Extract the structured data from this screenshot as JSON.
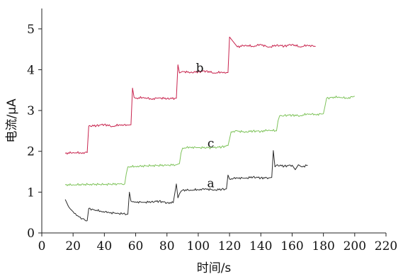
{
  "chart_data": {
    "type": "line",
    "title": "",
    "xlabel": "时间/s",
    "ylabel": "电流/μA",
    "xlim": [
      0,
      220
    ],
    "ylim": [
      0,
      5.5
    ],
    "xticks": [
      0,
      20,
      40,
      60,
      80,
      100,
      120,
      140,
      160,
      180,
      200,
      220
    ],
    "yticks": [
      0,
      1,
      2,
      3,
      4,
      5
    ],
    "grid": false,
    "series": [
      {
        "name": "a",
        "color": "#2b2b2b",
        "label_at": [
          108,
          1.22
        ],
        "x": [
          15,
          17,
          20,
          23,
          26,
          29,
          30,
          33,
          38,
          43,
          48,
          52,
          55,
          56,
          57,
          60,
          65,
          70,
          75,
          80,
          84,
          86,
          87,
          88,
          89,
          90,
          95,
          100,
          105,
          110,
          115,
          118,
          119,
          120,
          125,
          130,
          135,
          140,
          145,
          147,
          148,
          149,
          150,
          155,
          160,
          162,
          164,
          166,
          170
        ],
        "y": [
          0.82,
          0.65,
          0.52,
          0.42,
          0.35,
          0.3,
          0.6,
          0.57,
          0.53,
          0.5,
          0.48,
          0.47,
          0.46,
          1.0,
          0.78,
          0.76,
          0.75,
          0.76,
          0.78,
          0.74,
          0.74,
          1.2,
          0.86,
          0.96,
          1.02,
          1.05,
          1.05,
          1.06,
          1.08,
          1.05,
          1.07,
          1.08,
          1.42,
          1.32,
          1.35,
          1.34,
          1.37,
          1.35,
          1.35,
          1.36,
          2.02,
          1.62,
          1.66,
          1.64,
          1.66,
          1.55,
          1.67,
          1.62,
          1.66
        ]
      },
      {
        "name": "b",
        "color": "#c8244e",
        "label_at": [
          101,
          4.05
        ],
        "x": [
          15,
          20,
          25,
          29,
          30,
          35,
          40,
          45,
          50,
          55,
          57,
          58,
          59,
          60,
          65,
          70,
          75,
          80,
          85,
          86,
          87,
          88,
          90,
          95,
          100,
          105,
          110,
          115,
          118,
          119,
          120,
          125,
          130,
          135,
          140,
          145,
          150,
          155,
          160,
          165,
          170,
          175
        ],
        "y": [
          1.95,
          1.97,
          1.96,
          1.97,
          2.62,
          2.63,
          2.66,
          2.61,
          2.65,
          2.64,
          2.65,
          3.55,
          3.32,
          3.3,
          3.32,
          3.28,
          3.31,
          3.29,
          3.3,
          3.3,
          4.12,
          3.92,
          3.96,
          3.93,
          3.95,
          3.97,
          3.92,
          3.94,
          3.93,
          3.93,
          4.8,
          4.56,
          4.6,
          4.57,
          4.62,
          4.55,
          4.6,
          4.58,
          4.62,
          4.56,
          4.6,
          4.57
        ]
      },
      {
        "name": "c",
        "color": "#7ec35a",
        "label_at": [
          108,
          2.2
        ],
        "x": [
          15,
          20,
          30,
          40,
          50,
          53,
          54,
          55,
          60,
          70,
          80,
          86,
          88,
          89,
          90,
          95,
          100,
          110,
          115,
          119,
          120,
          121,
          125,
          130,
          135,
          140,
          145,
          150,
          151,
          152,
          155,
          160,
          165,
          170,
          175,
          180,
          181,
          182,
          185,
          190,
          195,
          200
        ],
        "y": [
          1.18,
          1.18,
          1.19,
          1.19,
          1.2,
          1.2,
          1.45,
          1.62,
          1.63,
          1.65,
          1.66,
          1.67,
          1.7,
          1.96,
          2.08,
          2.1,
          2.09,
          2.09,
          2.11,
          2.14,
          2.3,
          2.48,
          2.5,
          2.47,
          2.5,
          2.49,
          2.52,
          2.5,
          2.75,
          2.87,
          2.88,
          2.89,
          2.87,
          2.92,
          2.9,
          2.92,
          3.1,
          3.3,
          3.32,
          3.33,
          3.3,
          3.35
        ]
      }
    ]
  }
}
